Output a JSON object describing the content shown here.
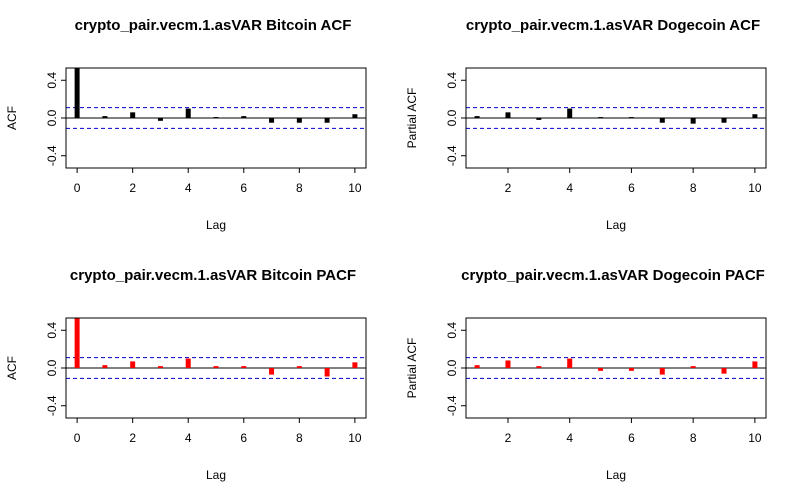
{
  "chart_data": [
    {
      "type": "acf",
      "title": "crypto_pair.vecm.1.asVAR Bitcoin ACF",
      "x_label": "Lag",
      "y_label": "ACF",
      "x": [
        0,
        1,
        2,
        3,
        4,
        5,
        6,
        7,
        8,
        9,
        10
      ],
      "values": [
        1,
        0.02,
        0.06,
        -0.03,
        0.1,
        0.01,
        0.02,
        -0.05,
        -0.05,
        -0.05,
        0.04
      ],
      "color": "#000000",
      "xlim": [
        -0.4,
        10.4
      ],
      "ylim": [
        -0.53,
        0.53
      ],
      "xticks": [
        0,
        2,
        4,
        6,
        8,
        10
      ],
      "yticks": [
        -0.4,
        {
          "value": 0,
          "label": "0.0"
        },
        0.4
      ],
      "confidence_bounds": [
        0.11,
        -0.11
      ],
      "bound_color": "#0000cc"
    },
    {
      "type": "acf",
      "title": "crypto_pair.vecm.1.asVAR Dogecoin ACF",
      "x_label": "Lag",
      "y_label": "Partial ACF",
      "x": [
        1,
        2,
        3,
        4,
        5,
        6,
        7,
        8,
        9,
        10
      ],
      "values": [
        0.02,
        0.06,
        -0.02,
        0.1,
        0.01,
        0.01,
        -0.05,
        -0.06,
        -0.05,
        0.04
      ],
      "color": "#000000",
      "xlim": [
        0.64,
        10.36
      ],
      "ylim": [
        -0.53,
        0.53
      ],
      "xticks": [
        2,
        4,
        6,
        8,
        10
      ],
      "yticks": [
        -0.4,
        {
          "value": 0,
          "label": "0.0"
        },
        0.4
      ],
      "confidence_bounds": [
        0.11,
        -0.11
      ],
      "bound_color": "#0000cc"
    },
    {
      "type": "acf",
      "title": "crypto_pair.vecm.1.asVAR Bitcoin PACF",
      "x_label": "Lag",
      "y_label": "ACF",
      "x": [
        0,
        1,
        2,
        3,
        4,
        5,
        6,
        7,
        8,
        9,
        10
      ],
      "values": [
        1,
        0.03,
        0.07,
        0.02,
        0.1,
        0.02,
        0.02,
        -0.07,
        0.02,
        -0.09,
        0.06
      ],
      "color": "#ff0000",
      "xlim": [
        -0.4,
        10.4
      ],
      "ylim": [
        -0.53,
        0.53
      ],
      "xticks": [
        0,
        2,
        4,
        6,
        8,
        10
      ],
      "yticks": [
        -0.4,
        {
          "value": 0,
          "label": "0.0"
        },
        0.4
      ],
      "confidence_bounds": [
        0.11,
        -0.11
      ],
      "bound_color": "#0000cc"
    },
    {
      "type": "acf",
      "title": "crypto_pair.vecm.1.asVAR Dogecoin PACF",
      "x_label": "Lag",
      "y_label": "Partial ACF",
      "x": [
        1,
        2,
        3,
        4,
        5,
        6,
        7,
        8,
        9,
        10
      ],
      "values": [
        0.03,
        0.08,
        0.02,
        0.1,
        -0.03,
        -0.03,
        -0.07,
        0.02,
        -0.06,
        0.07
      ],
      "color": "#ff0000",
      "xlim": [
        0.64,
        10.36
      ],
      "ylim": [
        -0.53,
        0.53
      ],
      "xticks": [
        2,
        4,
        6,
        8,
        10
      ],
      "yticks": [
        -0.4,
        {
          "value": 0,
          "label": "0.0"
        },
        0.4
      ],
      "confidence_bounds": [
        0.11,
        -0.11
      ],
      "bound_color": "#0000cc"
    }
  ]
}
